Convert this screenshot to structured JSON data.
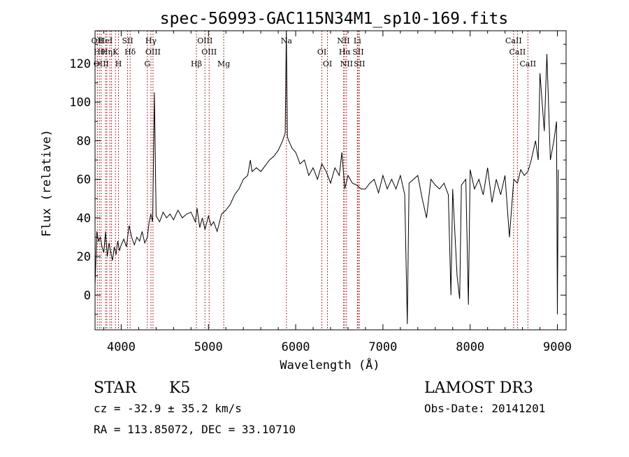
{
  "chart_data": {
    "type": "line",
    "title": "spec-56993-GAC115N34M1_sp10-169.fits",
    "xlabel": "Wavelength (Å)",
    "ylabel": "Flux (relative)",
    "xlim": [
      3700,
      9100
    ],
    "ylim": [
      -18,
      137
    ],
    "xticks": [
      4000,
      5000,
      6000,
      7000,
      8000,
      9000
    ],
    "yticks": [
      0,
      20,
      40,
      60,
      80,
      100,
      120
    ],
    "grid": false,
    "line_color": "#000000",
    "marker_color": "#b03030",
    "series": [
      {
        "x": [
          3700,
          3720,
          3740,
          3760,
          3780,
          3800,
          3820,
          3840,
          3860,
          3880,
          3900,
          3920,
          3940,
          3960,
          3980,
          4000,
          4030,
          4060,
          4090,
          4120,
          4150,
          4180,
          4210,
          4240,
          4270,
          4300,
          4320,
          4340,
          4360,
          4380,
          4400,
          4440,
          4480,
          4520,
          4560,
          4600,
          4650,
          4700,
          4750,
          4800,
          4850,
          4870,
          4900,
          4930,
          4960,
          5000,
          5030,
          5060,
          5100,
          5150,
          5200,
          5250,
          5300,
          5350,
          5400,
          5450,
          5480,
          5500,
          5550,
          5600,
          5650,
          5700,
          5750,
          5800,
          5850,
          5880,
          5893,
          5905,
          5920,
          5960,
          6000,
          6050,
          6100,
          6150,
          6200,
          6250,
          6300,
          6350,
          6400,
          6450,
          6500,
          6530,
          6563,
          6600,
          6650,
          6700,
          6750,
          6800,
          6850,
          6900,
          6950,
          7000,
          7050,
          7100,
          7150,
          7200,
          7250,
          7280,
          7300,
          7350,
          7400,
          7450,
          7500,
          7550,
          7600,
          7650,
          7700,
          7750,
          7780,
          7800,
          7850,
          7880,
          7900,
          7950,
          7980,
          8000,
          8050,
          8100,
          8150,
          8200,
          8250,
          8300,
          8350,
          8400,
          8450,
          8500,
          8542,
          8580,
          8620,
          8662,
          8700,
          8750,
          8780,
          8800,
          8850,
          8880,
          8920,
          8960,
          8990,
          9000,
          9010
        ],
        "y": [
          5,
          33,
          28,
          30,
          25,
          22,
          33,
          20,
          27,
          22,
          18,
          25,
          21,
          28,
          23,
          26,
          29,
          25,
          36,
          30,
          26,
          30,
          28,
          33,
          27,
          30,
          38,
          42,
          38,
          105,
          41,
          38,
          43,
          40,
          42,
          39,
          44,
          40,
          42,
          43,
          38,
          45,
          35,
          40,
          34,
          41,
          36,
          38,
          33,
          42,
          44,
          47,
          52,
          55,
          60,
          62,
          70,
          64,
          66,
          64,
          67,
          70,
          72,
          75,
          80,
          84,
          140,
          82,
          80,
          76,
          74,
          68,
          70,
          62,
          66,
          60,
          68,
          64,
          58,
          66,
          62,
          74,
          55,
          62,
          58,
          57,
          55,
          55,
          58,
          60,
          53,
          62,
          55,
          60,
          55,
          62,
          52,
          -15,
          58,
          60,
          62,
          50,
          40,
          60,
          57,
          55,
          58,
          52,
          0,
          55,
          10,
          -2,
          57,
          60,
          -5,
          65,
          55,
          60,
          52,
          66,
          48,
          60,
          52,
          62,
          30,
          60,
          58,
          65,
          62,
          64,
          70,
          80,
          70,
          115,
          85,
          125,
          70,
          80,
          90,
          -10,
          65
        ]
      }
    ],
    "line_markers": [
      {
        "x": 3727,
        "label": "OII"
      },
      {
        "x": 3750,
        "label": "Hθ"
      },
      {
        "x": 3770,
        "label": "OIII"
      },
      {
        "x": 3820,
        "label": "HeI"
      },
      {
        "x": 3835,
        "label": "Hη"
      },
      {
        "x": 3870,
        "label": ""
      },
      {
        "x": 3889,
        "label": ""
      },
      {
        "x": 3934,
        "label": "K"
      },
      {
        "x": 3969,
        "label": "H"
      },
      {
        "x": 4073,
        "label": "SII"
      },
      {
        "x": 4102,
        "label": "Hδ"
      },
      {
        "x": 4300,
        "label": "G"
      },
      {
        "x": 4341,
        "label": "Hγ"
      },
      {
        "x": 4364,
        "label": "OIII"
      },
      {
        "x": 4862,
        "label": "Hβ"
      },
      {
        "x": 4960,
        "label": "OIII"
      },
      {
        "x": 5008,
        "label": "OIII"
      },
      {
        "x": 5175,
        "label": "Mg"
      },
      {
        "x": 5894,
        "label": "Na"
      },
      {
        "x": 6300,
        "label": "OI"
      },
      {
        "x": 6364,
        "label": "OI"
      },
      {
        "x": 6548,
        "label": "NII"
      },
      {
        "x": 6563,
        "label": "Hα"
      },
      {
        "x": 6583,
        "label": "NII"
      },
      {
        "x": 6707,
        "label": "Li"
      },
      {
        "x": 6716,
        "label": "SII"
      },
      {
        "x": 6731,
        "label": "SII"
      },
      {
        "x": 8498,
        "label": "CaII"
      },
      {
        "x": 8542,
        "label": "CaII"
      },
      {
        "x": 8662,
        "label": "CaII"
      }
    ]
  },
  "info": {
    "class": "STAR",
    "subclass": "K5",
    "survey": "LAMOST DR3",
    "cz": "cz = -32.9 ± 35.2 km/s",
    "obs_date": "Obs-Date: 20141201",
    "radec": "RA = 113.85072, DEC =  33.10710"
  }
}
